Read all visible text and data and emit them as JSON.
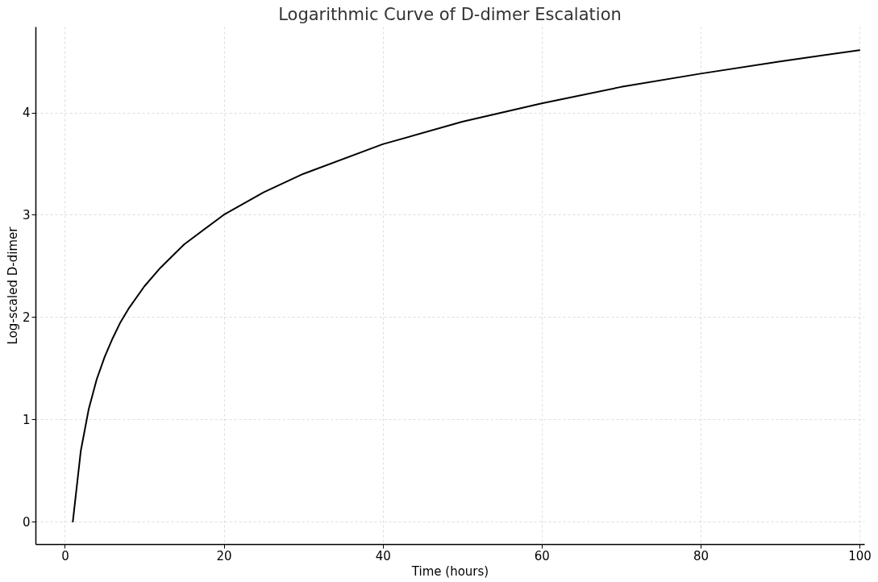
{
  "chart_data": {
    "type": "line",
    "title": "Logarithmic Curve of D-dimer Escalation",
    "xlabel": "Time (hours)",
    "ylabel": "Log-scaled D-dimer",
    "x": [
      1,
      2,
      3,
      4,
      5,
      6,
      7,
      8,
      10,
      12,
      15,
      20,
      25,
      30,
      40,
      50,
      60,
      70,
      80,
      90,
      100
    ],
    "series": [
      {
        "color": "#000000",
        "values": [
          0,
          0.69,
          1.1,
          1.39,
          1.61,
          1.79,
          1.95,
          2.08,
          2.3,
          2.48,
          2.71,
          3.0,
          3.22,
          3.4,
          3.69,
          3.91,
          4.09,
          4.25,
          4.38,
          4.5,
          4.61
        ]
      }
    ],
    "xlim": [
      -3.7,
      100.6
    ],
    "ylim": [
      -0.22,
      4.84
    ],
    "xticks": [
      0,
      20,
      40,
      60,
      80,
      100
    ],
    "yticks": [
      0,
      1,
      2,
      3,
      4
    ],
    "grid": true,
    "marker": "none",
    "line_style": "solid"
  }
}
